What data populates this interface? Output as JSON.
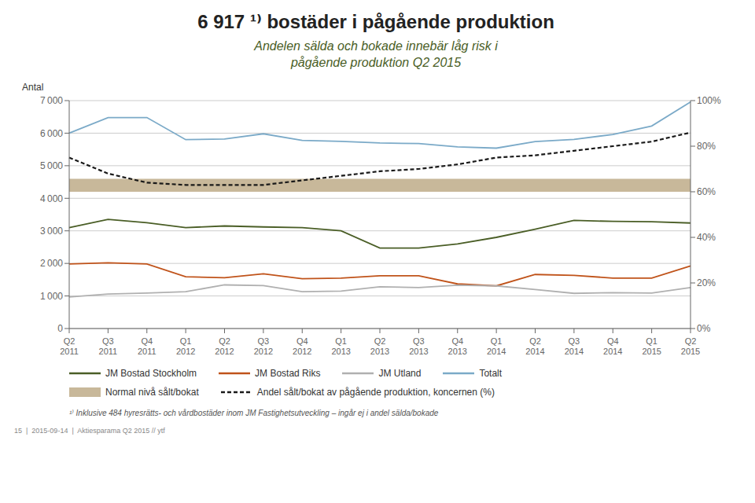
{
  "chart_data": {
    "type": "line",
    "title": "6 917 ¹⁾ bostäder i pågående produktion",
    "subtitle": [
      "Andelen sälda och bokade innebär låg risk i",
      "pågående produktion Q2 2015"
    ],
    "subtitle_color": "#4a5e26",
    "ylabel": "Antal",
    "categories": [
      "Q2\n2011",
      "Q3\n2011",
      "Q4\n2011",
      "Q1\n2012",
      "Q2\n2012",
      "Q3\n2012",
      "Q4\n2012",
      "Q1\n2013",
      "Q2\n2013",
      "Q3\n2013",
      "Q4\n2013",
      "Q1\n2014",
      "Q2\n2014",
      "Q3\n2014",
      "Q4\n2014",
      "Q1\n2015",
      "Q2\n2015"
    ],
    "series": [
      {
        "name": "JM Bostad Stockholm",
        "color": "#4a5e26",
        "values": [
          3100,
          3350,
          3250,
          3100,
          3150,
          3120,
          3100,
          3000,
          2470,
          2470,
          2600,
          2800,
          3050,
          3320,
          3290,
          3280,
          3240
        ]
      },
      {
        "name": "JM Bostad Riks",
        "color": "#c0531a",
        "values": [
          1980,
          2020,
          1980,
          1590,
          1560,
          1680,
          1530,
          1550,
          1620,
          1620,
          1370,
          1310,
          1660,
          1630,
          1550,
          1550,
          1920
        ]
      },
      {
        "name": "JM Utland",
        "color": "#b0b0b0",
        "values": [
          970,
          1060,
          1090,
          1130,
          1340,
          1320,
          1130,
          1150,
          1280,
          1260,
          1330,
          1310,
          1200,
          1080,
          1100,
          1090,
          1260
        ]
      },
      {
        "name": "Totalt",
        "color": "#7baac8",
        "values": [
          6000,
          6480,
          6480,
          5800,
          5820,
          5980,
          5780,
          5750,
          5700,
          5680,
          5580,
          5540,
          5740,
          5810,
          5960,
          6220,
          6960
        ]
      },
      {
        "name": "Andel sålt/bokat av pågående produktion, koncernen (%)",
        "color": "#1a1a1a",
        "axis": "y2",
        "line_style": "dashed",
        "values": [
          75,
          68,
          64,
          63,
          63,
          63,
          65,
          67,
          69,
          70,
          72,
          75,
          76,
          78,
          80,
          82,
          86
        ]
      }
    ],
    "bands": [
      {
        "name": "Normal nivå sålt/bokat",
        "low": 4200,
        "high": 4600,
        "color": "#c8b89a"
      }
    ],
    "ylim": [
      0,
      7000
    ],
    "yticks": [
      0,
      {
        "value": 1000,
        "label": "1 000"
      },
      {
        "value": 2000,
        "label": "2 000"
      },
      {
        "value": 3000,
        "label": "3 000"
      },
      {
        "value": 4000,
        "label": "4 000"
      },
      {
        "value": 5000,
        "label": "5 000"
      },
      {
        "value": 6000,
        "label": "6 000"
      },
      {
        "value": 7000,
        "label": "7 000"
      }
    ],
    "y2lim": [
      0,
      100
    ],
    "y2ticks": [
      {
        "value": 0,
        "label": "0%"
      },
      {
        "value": 20,
        "label": "20%"
      },
      {
        "value": 40,
        "label": "40%"
      },
      {
        "value": 60,
        "label": "60%"
      },
      {
        "value": 80,
        "label": "80%"
      },
      {
        "value": 100,
        "label": "100%"
      }
    ],
    "grid": true,
    "legend": "bottom",
    "annotations": [
      "¹⁾ Inklusive 484 hyresrätts- och vårdbostäder inom JM Fastighetsutveckling – ingår ej i andel sälda/bokade",
      "15  |  2015-09-14  |  Aktiesparama Q2 2015 // ytf"
    ]
  }
}
